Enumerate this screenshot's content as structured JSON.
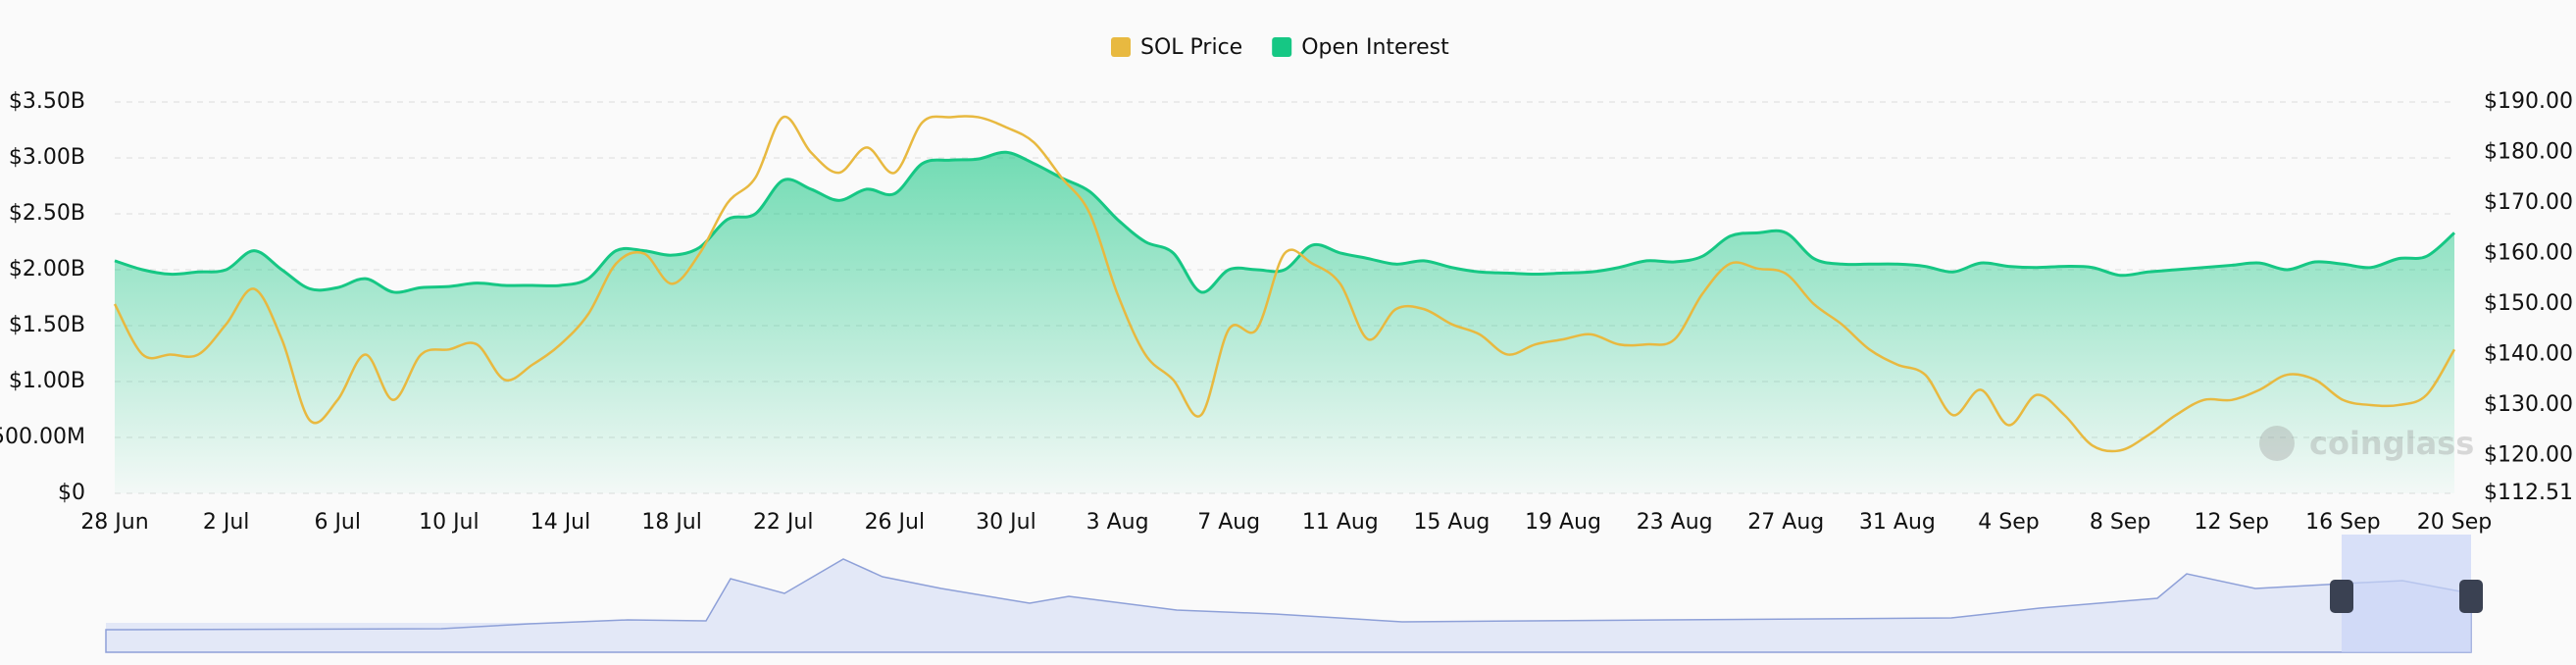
{
  "chart_data": {
    "type": "line",
    "categories": [
      "28 Jun",
      null,
      null,
      null,
      "2 Jul",
      null,
      null,
      null,
      "6 Jul",
      null,
      null,
      null,
      "10 Jul",
      null,
      null,
      null,
      "14 Jul",
      null,
      null,
      null,
      "18 Jul",
      null,
      null,
      null,
      "22 Jul",
      null,
      null,
      null,
      "26 Jul",
      null,
      null,
      null,
      "30 Jul",
      null,
      null,
      null,
      "3 Aug",
      null,
      null,
      null,
      "7 Aug",
      null,
      null,
      null,
      "11 Aug",
      null,
      null,
      null,
      "15 Aug",
      null,
      null,
      null,
      "19 Aug",
      null,
      null,
      null,
      "23 Aug",
      null,
      null,
      null,
      "27 Aug",
      null,
      null,
      null,
      "31 Aug",
      null,
      null,
      null,
      "4 Sep",
      null,
      null,
      null,
      "8 Sep",
      null,
      null,
      null,
      "12 Sep",
      null,
      null,
      null,
      "16 Sep",
      null,
      null,
      null,
      "20 Sep"
    ],
    "series": [
      {
        "name": "SOL Price",
        "color": "#e8b940",
        "axis": "y2",
        "values": [
          150,
          140,
          140,
          140,
          146,
          153,
          143,
          127,
          131,
          140,
          131,
          140,
          141,
          142,
          135,
          138,
          142,
          148,
          158,
          160,
          154,
          160,
          170,
          175,
          187,
          180,
          176,
          181,
          176,
          186,
          187,
          187,
          185,
          182,
          175,
          168,
          152,
          140,
          135,
          128,
          145,
          145,
          160,
          158,
          154,
          143,
          149,
          149,
          146,
          144,
          140,
          142,
          143,
          144,
          142,
          142,
          143,
          152,
          158,
          157,
          156,
          150,
          146,
          141,
          138,
          136,
          128,
          133,
          126,
          132,
          128,
          122,
          121,
          124,
          128,
          131,
          131,
          133,
          136,
          135,
          131,
          130,
          130,
          132,
          141
        ]
      },
      {
        "name": "Open Interest",
        "color": "#16c784",
        "values": [
          2080000000,
          2000000000,
          1960000000,
          1980000000,
          2000000000,
          2170000000,
          2000000000,
          1830000000,
          1840000000,
          1920000000,
          1800000000,
          1840000000,
          1850000000,
          1880000000,
          1860000000,
          1860000000,
          1860000000,
          1920000000,
          2170000000,
          2170000000,
          2130000000,
          2200000000,
          2450000000,
          2500000000,
          2800000000,
          2720000000,
          2620000000,
          2720000000,
          2680000000,
          2950000000,
          2980000000,
          2990000000,
          3050000000,
          2950000000,
          2820000000,
          2700000000,
          2450000000,
          2250000000,
          2150000000,
          1800000000,
          2000000000,
          2000000000,
          2000000000,
          2220000000,
          2150000000,
          2100000000,
          2050000000,
          2080000000,
          2020000000,
          1980000000,
          1970000000,
          1960000000,
          1970000000,
          1980000000,
          2020000000,
          2080000000,
          2070000000,
          2120000000,
          2300000000,
          2330000000,
          2330000000,
          2100000000,
          2050000000,
          2050000000,
          2050000000,
          2030000000,
          1980000000,
          2060000000,
          2030000000,
          2020000000,
          2030000000,
          2020000000,
          1950000000,
          1980000000,
          2000000000,
          2020000000,
          2040000000,
          2060000000,
          2000000000,
          2070000000,
          2050000000,
          2020000000,
          2100000000,
          2120000000,
          2330000000
        ]
      }
    ],
    "ylim": [
      0,
      3500000000
    ],
    "yticks": [
      {
        "value": 0,
        "label": "$0"
      },
      {
        "value": 500000000,
        "label": "500.00M"
      },
      {
        "value": 1000000000,
        "label": "$1.00B"
      },
      {
        "value": 1500000000,
        "label": "$1.50B"
      },
      {
        "value": 2000000000,
        "label": "$2.00B"
      },
      {
        "value": 2500000000,
        "label": "$2.50B"
      },
      {
        "value": 3000000000,
        "label": "$3.00B"
      },
      {
        "value": 3500000000,
        "label": "$3.50B"
      }
    ],
    "y2lim": [
      112.51,
      190
    ],
    "y2ticks": [
      {
        "value": 112.51,
        "label": "$112.51"
      },
      {
        "value": 120,
        "label": "$120.00"
      },
      {
        "value": 130,
        "label": "$130.00"
      },
      {
        "value": 140,
        "label": "$140.00"
      },
      {
        "value": 150,
        "label": "$150.00"
      },
      {
        "value": 160,
        "label": "$160.00"
      },
      {
        "value": 170,
        "label": "$170.00"
      },
      {
        "value": 180,
        "label": "$180.00"
      },
      {
        "value": 190,
        "label": "$190.00"
      }
    ],
    "grid": true,
    "legend": "top",
    "watermark": "coinglass"
  }
}
